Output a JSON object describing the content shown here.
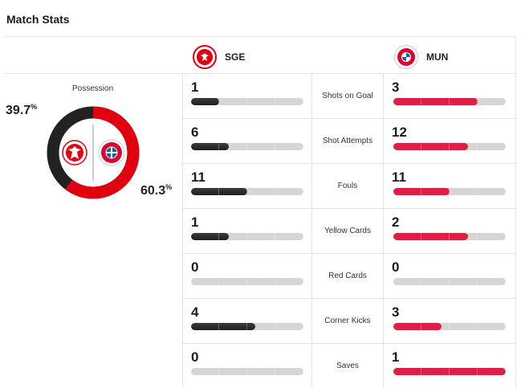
{
  "header": {
    "title": "Match Stats"
  },
  "teams": {
    "home": {
      "abbr": "SGE",
      "logo": "eintracht-frankfurt-logo",
      "color": "#222222"
    },
    "away": {
      "abbr": "MUN",
      "logo": "bayern-munich-logo",
      "color": "#dc1f42"
    }
  },
  "possession": {
    "label": "Possession",
    "home_pct": "39.7",
    "away_pct": "60.3",
    "pct_sign": "%",
    "home_value": 39.7,
    "away_value": 60.3
  },
  "stats": [
    {
      "label": "Shots on Goal",
      "home": 1,
      "away": 3
    },
    {
      "label": "Shot Attempts",
      "home": 6,
      "away": 12
    },
    {
      "label": "Fouls",
      "home": 11,
      "away": 11
    },
    {
      "label": "Yellow Cards",
      "home": 1,
      "away": 2
    },
    {
      "label": "Red Cards",
      "home": 0,
      "away": 0
    },
    {
      "label": "Corner Kicks",
      "home": 4,
      "away": 3
    },
    {
      "label": "Saves",
      "home": 0,
      "away": 1
    }
  ]
}
